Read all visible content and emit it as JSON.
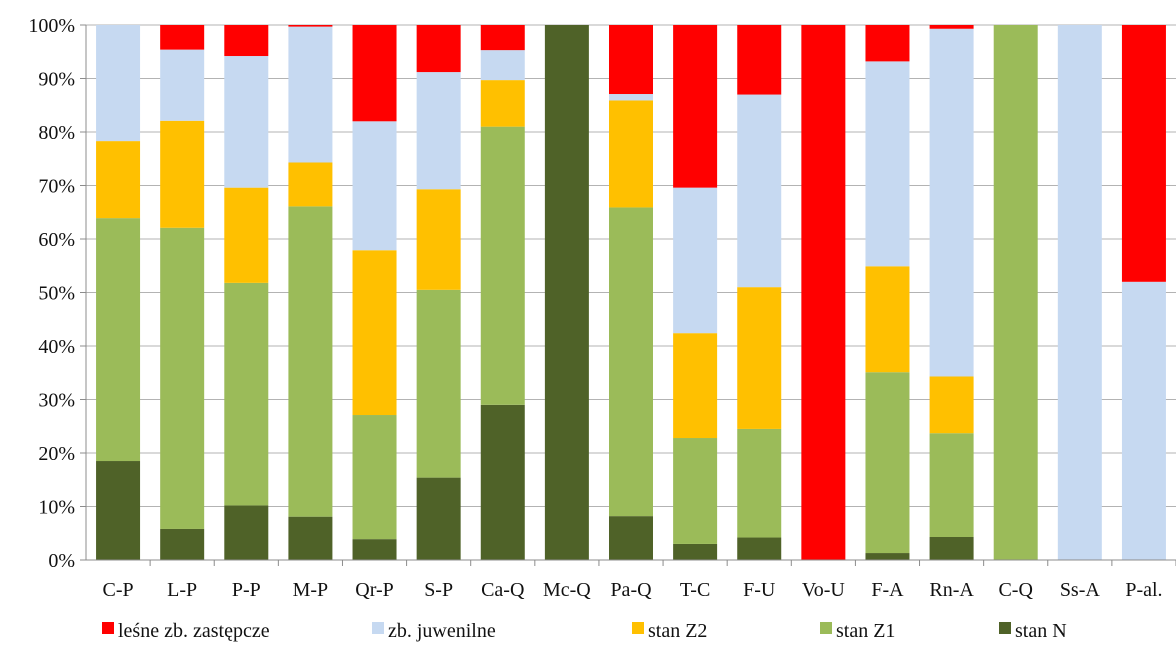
{
  "chart_data": {
    "type": "bar",
    "stacked": true,
    "percent": true,
    "title": "",
    "xlabel": "",
    "ylabel": "",
    "ylim": [
      0,
      100
    ],
    "y_ticks": [
      "0%",
      "10%",
      "20%",
      "30%",
      "40%",
      "50%",
      "60%",
      "70%",
      "80%",
      "90%",
      "100%"
    ],
    "grid": true,
    "legend_position": "bottom",
    "categories": [
      "C-P",
      "L-P",
      "P-P",
      "M-P",
      "Qr-P",
      "S-P",
      "Ca-Q",
      "Mc-Q",
      "Pa-Q",
      "T-C",
      "F-U",
      "Vo-U",
      "F-A",
      "Rn-A",
      "C-Q",
      "Ss-A",
      "P-al."
    ],
    "series": [
      {
        "name": "stan N",
        "color": "#4f6228",
        "values": [
          18.5,
          5.8,
          10.2,
          8.1,
          3.9,
          15.4,
          29.0,
          100,
          8.2,
          3.0,
          4.2,
          0,
          1.3,
          4.3,
          0,
          0,
          0
        ]
      },
      {
        "name": "stan Z1",
        "color": "#9bbb59",
        "values": [
          45.4,
          56.3,
          41.6,
          58.0,
          23.2,
          35.1,
          52.0,
          0,
          57.7,
          19.8,
          20.3,
          0,
          33.8,
          19.4,
          100,
          0,
          0
        ]
      },
      {
        "name": "stan Z2",
        "color": "#ffc000",
        "values": [
          14.4,
          20.0,
          17.8,
          8.2,
          30.8,
          18.8,
          8.7,
          0,
          20.0,
          19.6,
          26.5,
          0,
          19.8,
          10.6,
          0,
          0,
          0
        ]
      },
      {
        "name": "zb. juwenilne",
        "color": "#c6d9f1",
        "values": [
          21.7,
          13.3,
          24.6,
          25.4,
          24.1,
          21.9,
          5.6,
          0,
          1.2,
          27.2,
          36.0,
          0,
          38.3,
          65.0,
          0,
          100,
          52.0
        ]
      },
      {
        "name": "leśne zb. zastępcze",
        "color": "#ff0000",
        "values": [
          0,
          4.6,
          5.8,
          0.3,
          18.0,
          8.8,
          4.7,
          0,
          12.9,
          30.4,
          13.0,
          100,
          6.8,
          0.7,
          0,
          0,
          48.0
        ]
      }
    ],
    "legend_order": [
      "leśne zb. zastępcze",
      "zb. juwenilne",
      "stan Z2",
      "stan Z1",
      "stan N"
    ],
    "colors": {
      "grid": "#b3b3b3",
      "axis": "#8c8c8c",
      "text": "#111111"
    }
  }
}
